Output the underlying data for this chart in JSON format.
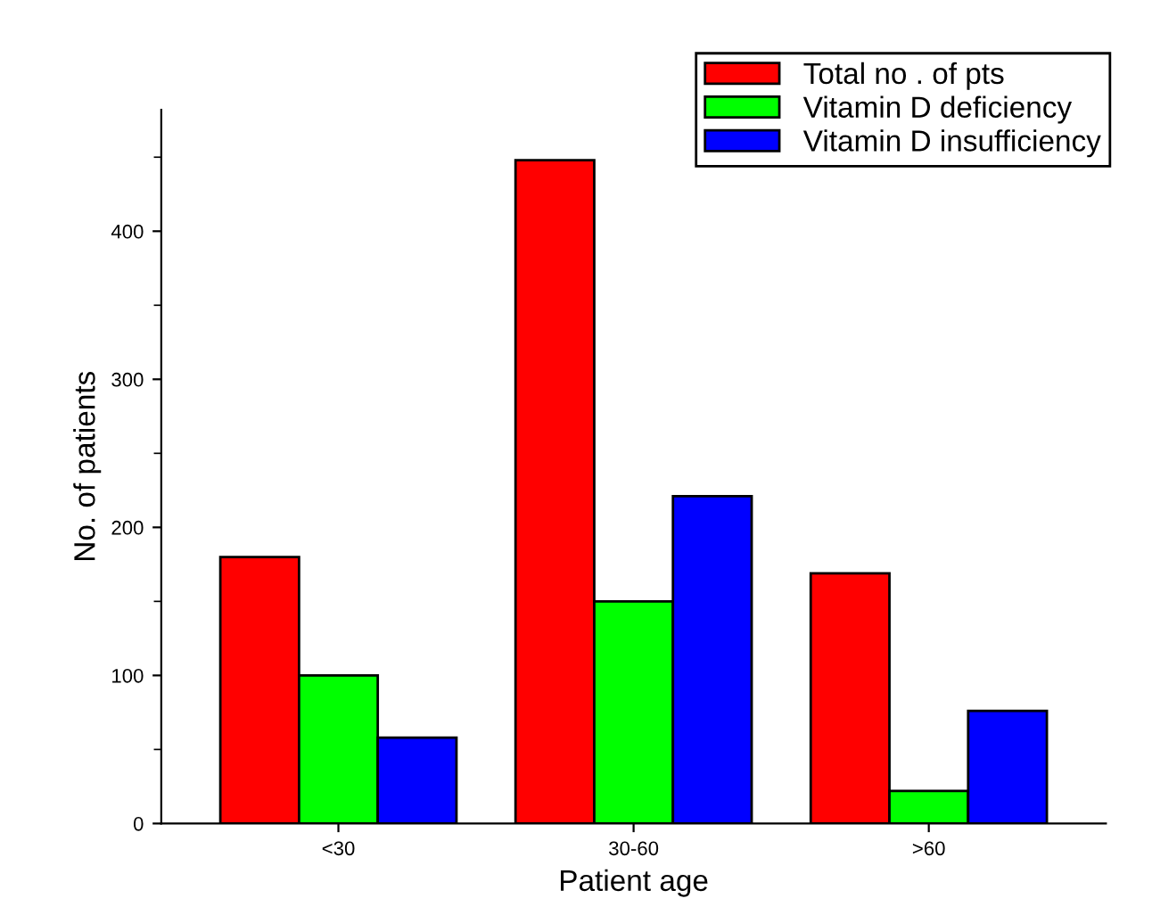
{
  "chart_data": {
    "type": "bar",
    "xlabel": "Patient age",
    "ylabel": "No. of patients",
    "categories": [
      "<30",
      "30-60",
      ">60"
    ],
    "series": [
      {
        "name": "Total no . of pts",
        "color": "#ff0000",
        "values": [
          180,
          448,
          169
        ]
      },
      {
        "name": "Vitamin D deficiency",
        "color": "#00ff00",
        "values": [
          100,
          150,
          22
        ]
      },
      {
        "name": "Vitamin D insufficiency",
        "color": "#0000ff",
        "values": [
          58,
          221,
          76
        ]
      }
    ],
    "ylim": [
      0,
      482
    ],
    "yticks": [
      0,
      100,
      200,
      300,
      400
    ],
    "grid": false,
    "legend": "top right"
  }
}
